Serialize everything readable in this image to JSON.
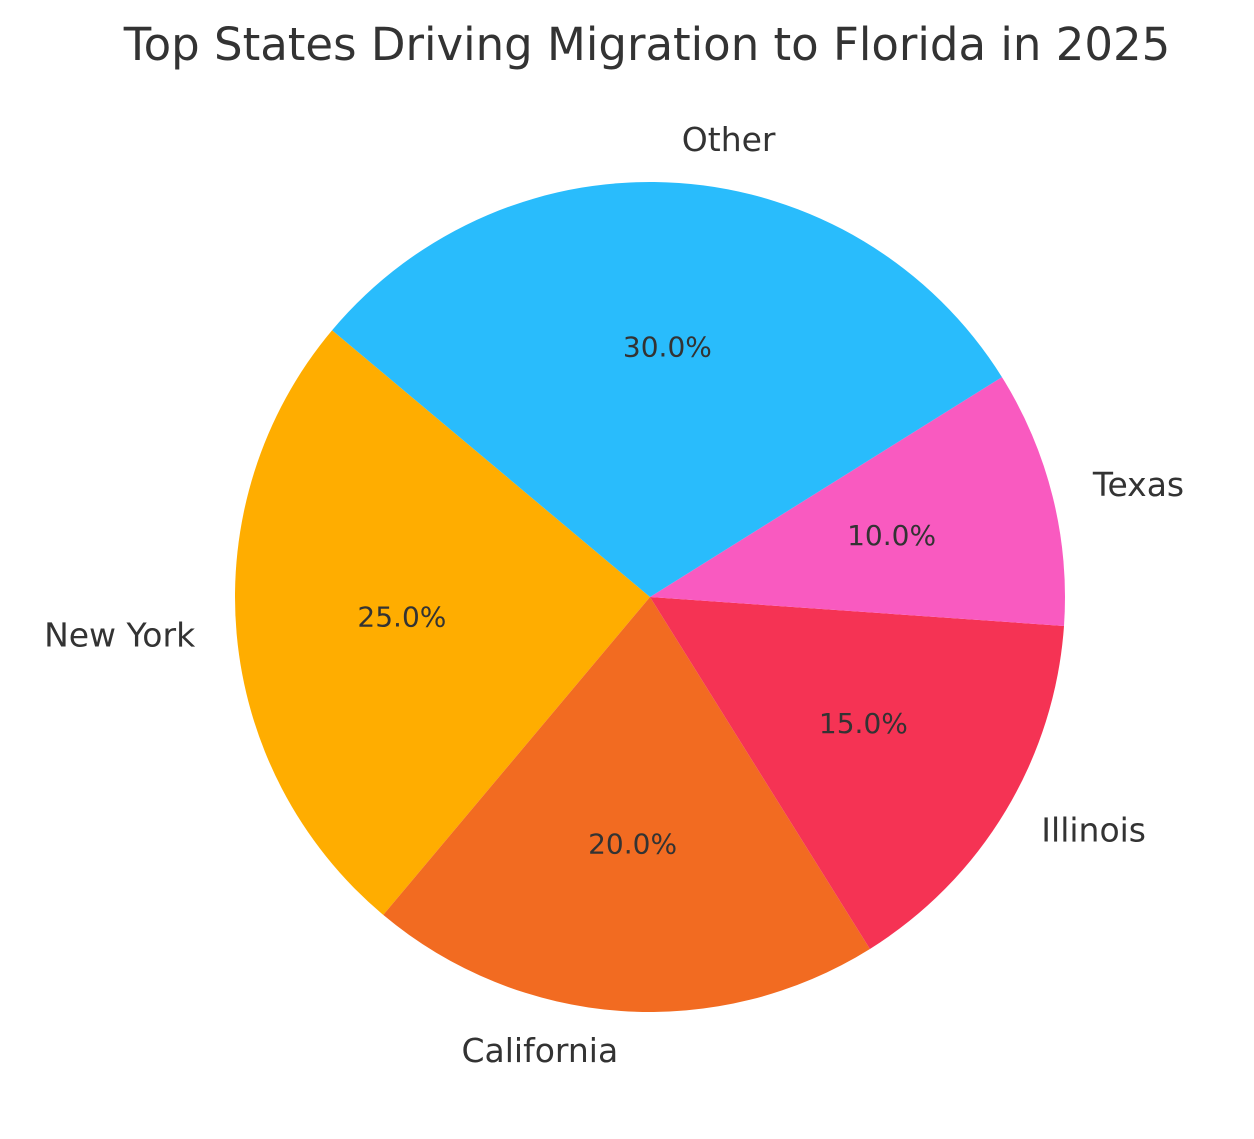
{
  "chart_data": {
    "type": "pie",
    "title": "Top States Driving Migration to Florida in 2025",
    "slices": [
      {
        "label": "New York",
        "value": 25.0,
        "pct_label": "25.0%",
        "color": "#FFAD00"
      },
      {
        "label": "California",
        "value": 20.0,
        "pct_label": "20.0%",
        "color": "#F26B21"
      },
      {
        "label": "Illinois",
        "value": 15.0,
        "pct_label": "15.0%",
        "color": "#F53354"
      },
      {
        "label": "Texas",
        "value": 10.0,
        "pct_label": "10.0%",
        "color": "#F95AC0"
      },
      {
        "label": "Other",
        "value": 30.0,
        "pct_label": "30.0%",
        "color": "#29BCFC"
      }
    ],
    "start_angle_deg": 140,
    "direction": "counterclockwise",
    "legend": "none"
  }
}
